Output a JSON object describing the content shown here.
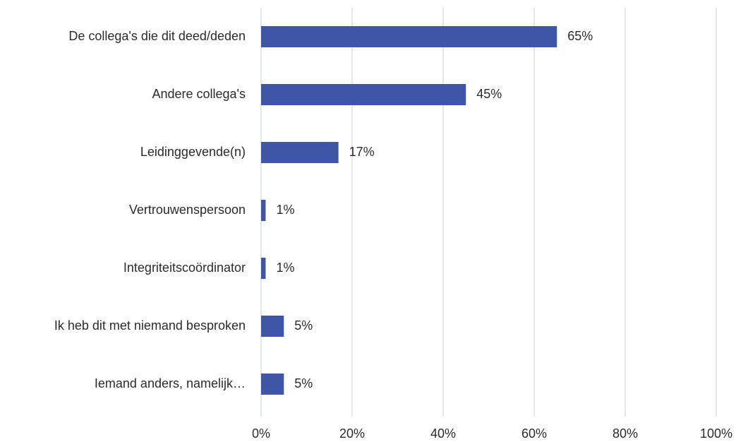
{
  "chart_data": {
    "type": "hbar",
    "categories": [
      "De collega's die dit deed/deden",
      "Andere collega's",
      "Leidinggevende(n)",
      "Vertrouwenspersoon",
      "Integriteitscoördinator",
      "Ik heb dit met niemand besproken",
      "Iemand anders, namelijk…"
    ],
    "values": [
      65,
      45,
      17,
      1,
      1,
      5,
      5
    ],
    "value_labels": [
      "65%",
      "45%",
      "17%",
      "1%",
      "1%",
      "5%",
      "5%"
    ],
    "color": "#3f56a8",
    "xlim": [
      0,
      100
    ],
    "xticks": [
      {
        "value": 0,
        "label": "0%"
      },
      {
        "value": 20,
        "label": "20%"
      },
      {
        "value": 40,
        "label": "40%"
      },
      {
        "value": 60,
        "label": "60%"
      },
      {
        "value": 80,
        "label": "80%"
      },
      {
        "value": 100,
        "label": "100%"
      }
    ],
    "grid": true
  }
}
